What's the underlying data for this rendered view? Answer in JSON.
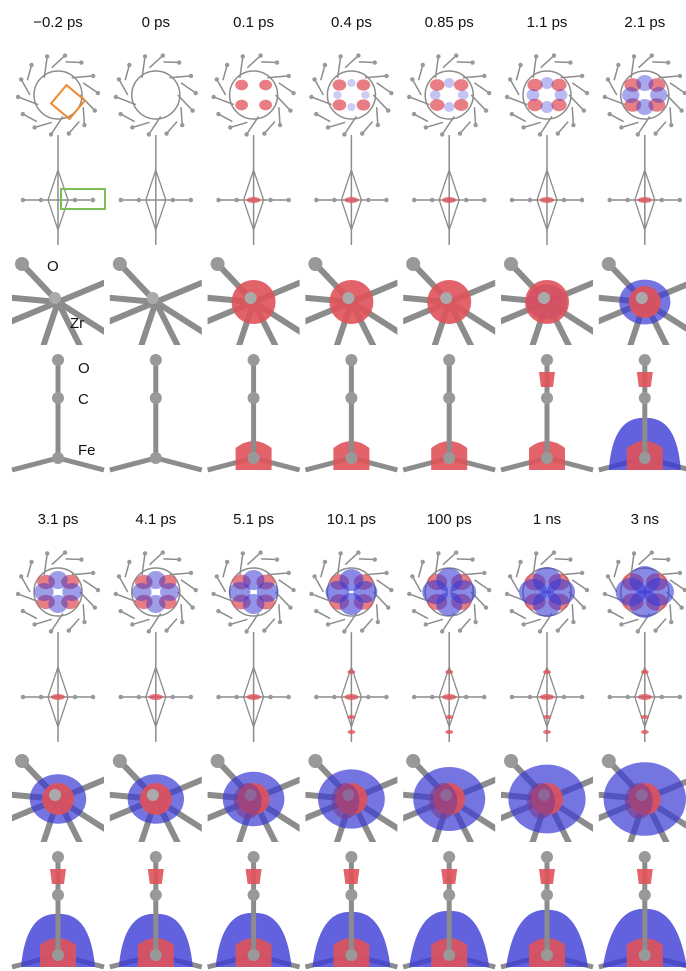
{
  "time_labels": [
    "−0.2 ps",
    "0 ps",
    "0.1 ps",
    "0.4 ps",
    "0.85 ps",
    "1.1 ps",
    "2.1 ps",
    "3.1 ps",
    "4.1 ps",
    "5.1 ps",
    "10.1 ps",
    "100 ps",
    "1 ns",
    "3 ns"
  ],
  "atom_labels": {
    "zr_panel": {
      "o": "O",
      "zr": "Zr"
    },
    "fe_panel": {
      "o": "O",
      "c": "C",
      "fe": "Fe"
    }
  }
}
